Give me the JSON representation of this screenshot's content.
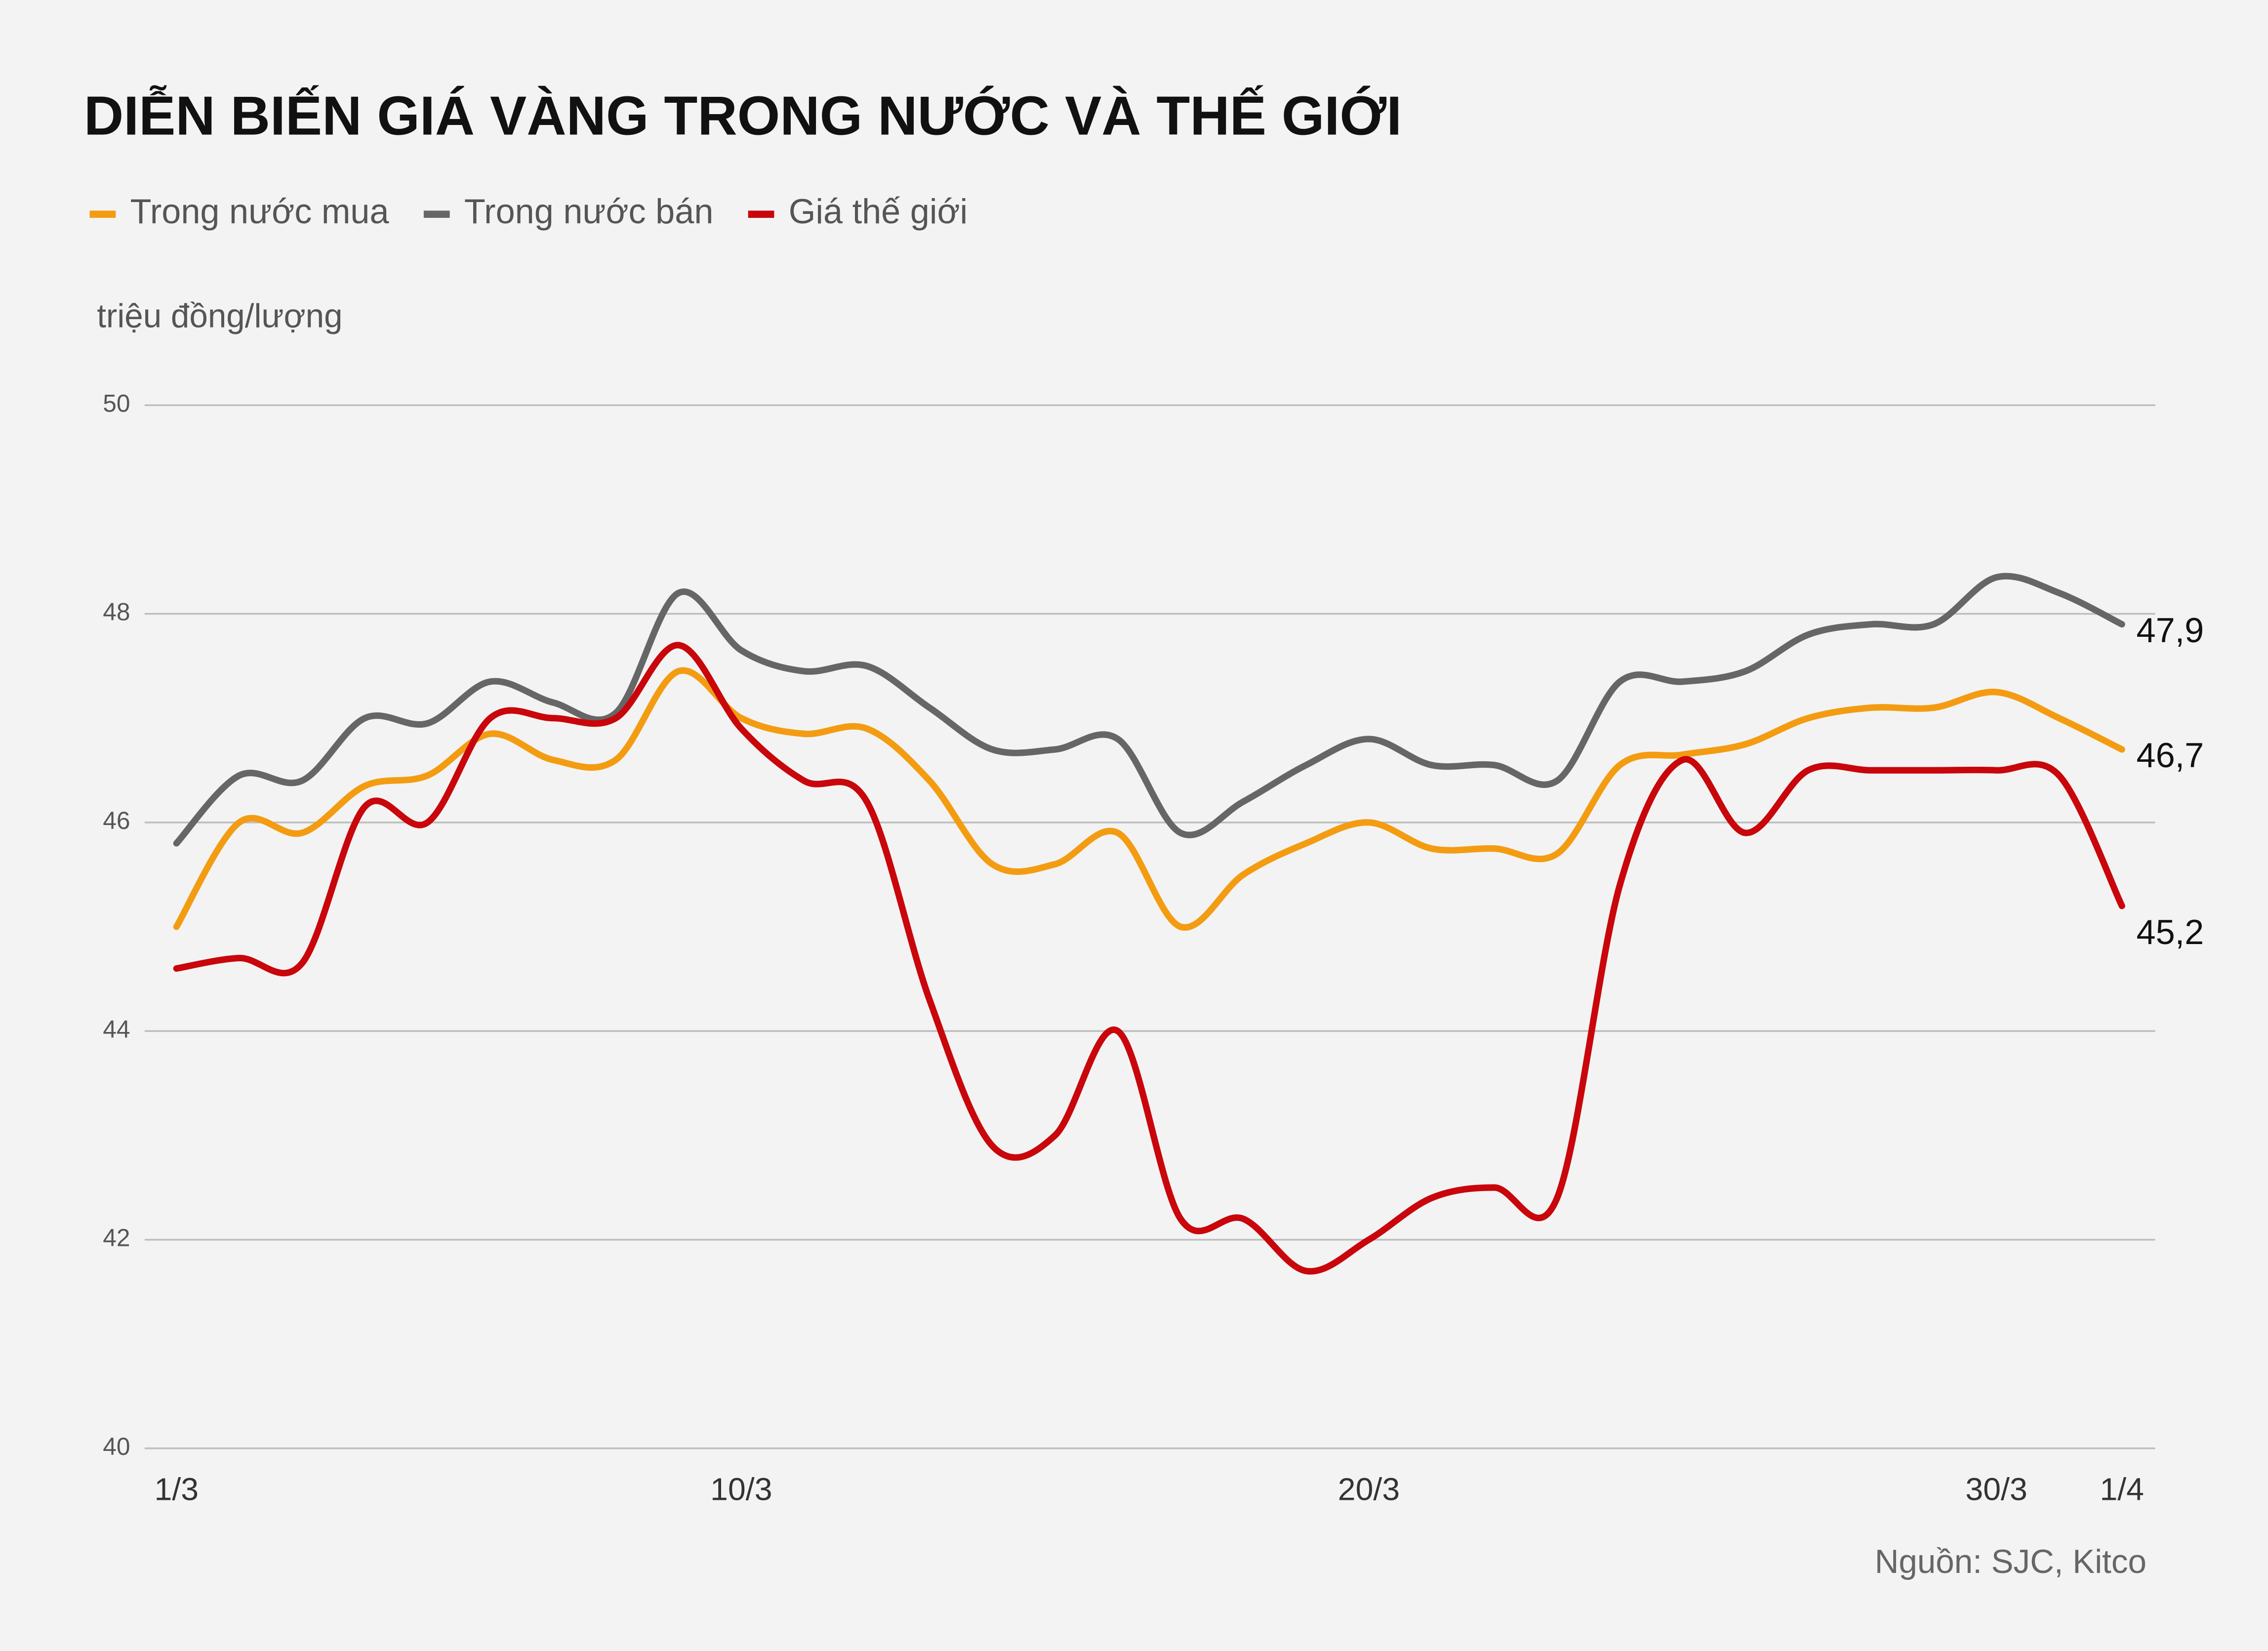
{
  "chart_data": {
    "type": "line",
    "title": "DIỄN BIẾN GIÁ VÀNG TRONG NƯỚC VÀ THẾ GIỚI",
    "y_label": "triệu đồng/lượng",
    "source": "Nguồn: SJC, Kitco",
    "categories": [
      "1/3",
      null,
      null,
      null,
      null,
      null,
      null,
      null,
      null,
      "10/3",
      null,
      null,
      null,
      null,
      null,
      null,
      null,
      null,
      null,
      "20/3",
      null,
      null,
      null,
      null,
      null,
      null,
      null,
      null,
      null,
      "30/3",
      null,
      "1/4"
    ],
    "ylim": [
      40,
      50
    ],
    "yticks": [
      40,
      42,
      44,
      46,
      48,
      50
    ],
    "grid": true,
    "legend": "top-left",
    "series": [
      {
        "name": "Trong nước mua",
        "color": "#f39c12",
        "values": [
          45.0,
          46.0,
          45.9,
          46.35,
          46.45,
          46.85,
          46.6,
          46.6,
          47.45,
          47.0,
          46.85,
          46.9,
          46.4,
          45.6,
          45.6,
          45.9,
          45.0,
          45.5,
          45.8,
          46.0,
          45.75,
          45.75,
          45.7,
          46.55,
          46.65,
          46.75,
          47.0,
          47.1,
          47.1,
          47.25,
          47.0,
          46.7
        ],
        "value_labels": [
          null,
          null,
          null,
          null,
          null,
          null,
          null,
          null,
          null,
          null,
          null,
          null,
          null,
          null,
          null,
          null,
          null,
          null,
          null,
          null,
          null,
          null,
          null,
          null,
          null,
          null,
          null,
          null,
          null,
          null,
          null,
          "46,7"
        ]
      },
      {
        "name": "Trong nước bán",
        "color": "#666666",
        "values": [
          45.8,
          46.45,
          46.4,
          47.0,
          46.95,
          47.35,
          47.15,
          47.05,
          48.2,
          47.65,
          47.45,
          47.5,
          47.1,
          46.7,
          46.7,
          46.8,
          45.9,
          46.2,
          46.55,
          46.8,
          46.55,
          46.55,
          46.4,
          47.35,
          47.35,
          47.45,
          47.8,
          47.9,
          47.9,
          48.35,
          48.2,
          47.9
        ],
        "value_labels": [
          null,
          null,
          null,
          null,
          null,
          null,
          null,
          null,
          null,
          null,
          null,
          null,
          null,
          null,
          null,
          null,
          null,
          null,
          null,
          null,
          null,
          null,
          null,
          null,
          null,
          null,
          null,
          null,
          null,
          null,
          null,
          "47,9"
        ]
      },
      {
        "name": "Giá thế giới",
        "color": "#c8060b",
        "values": [
          44.6,
          44.7,
          44.65,
          46.15,
          46.0,
          47.0,
          47.0,
          47.0,
          47.7,
          46.9,
          46.4,
          46.2,
          44.3,
          42.9,
          43.0,
          44.0,
          42.2,
          42.2,
          41.7,
          42.0,
          42.4,
          42.5,
          42.4,
          45.4,
          46.6,
          45.9,
          46.5,
          46.5,
          46.5,
          46.5,
          46.45,
          45.2
        ],
        "value_labels": [
          null,
          null,
          null,
          null,
          null,
          null,
          null,
          null,
          null,
          null,
          null,
          null,
          null,
          null,
          null,
          null,
          null,
          null,
          null,
          null,
          null,
          null,
          null,
          null,
          null,
          null,
          null,
          null,
          null,
          null,
          null,
          "45,2"
        ]
      }
    ]
  }
}
